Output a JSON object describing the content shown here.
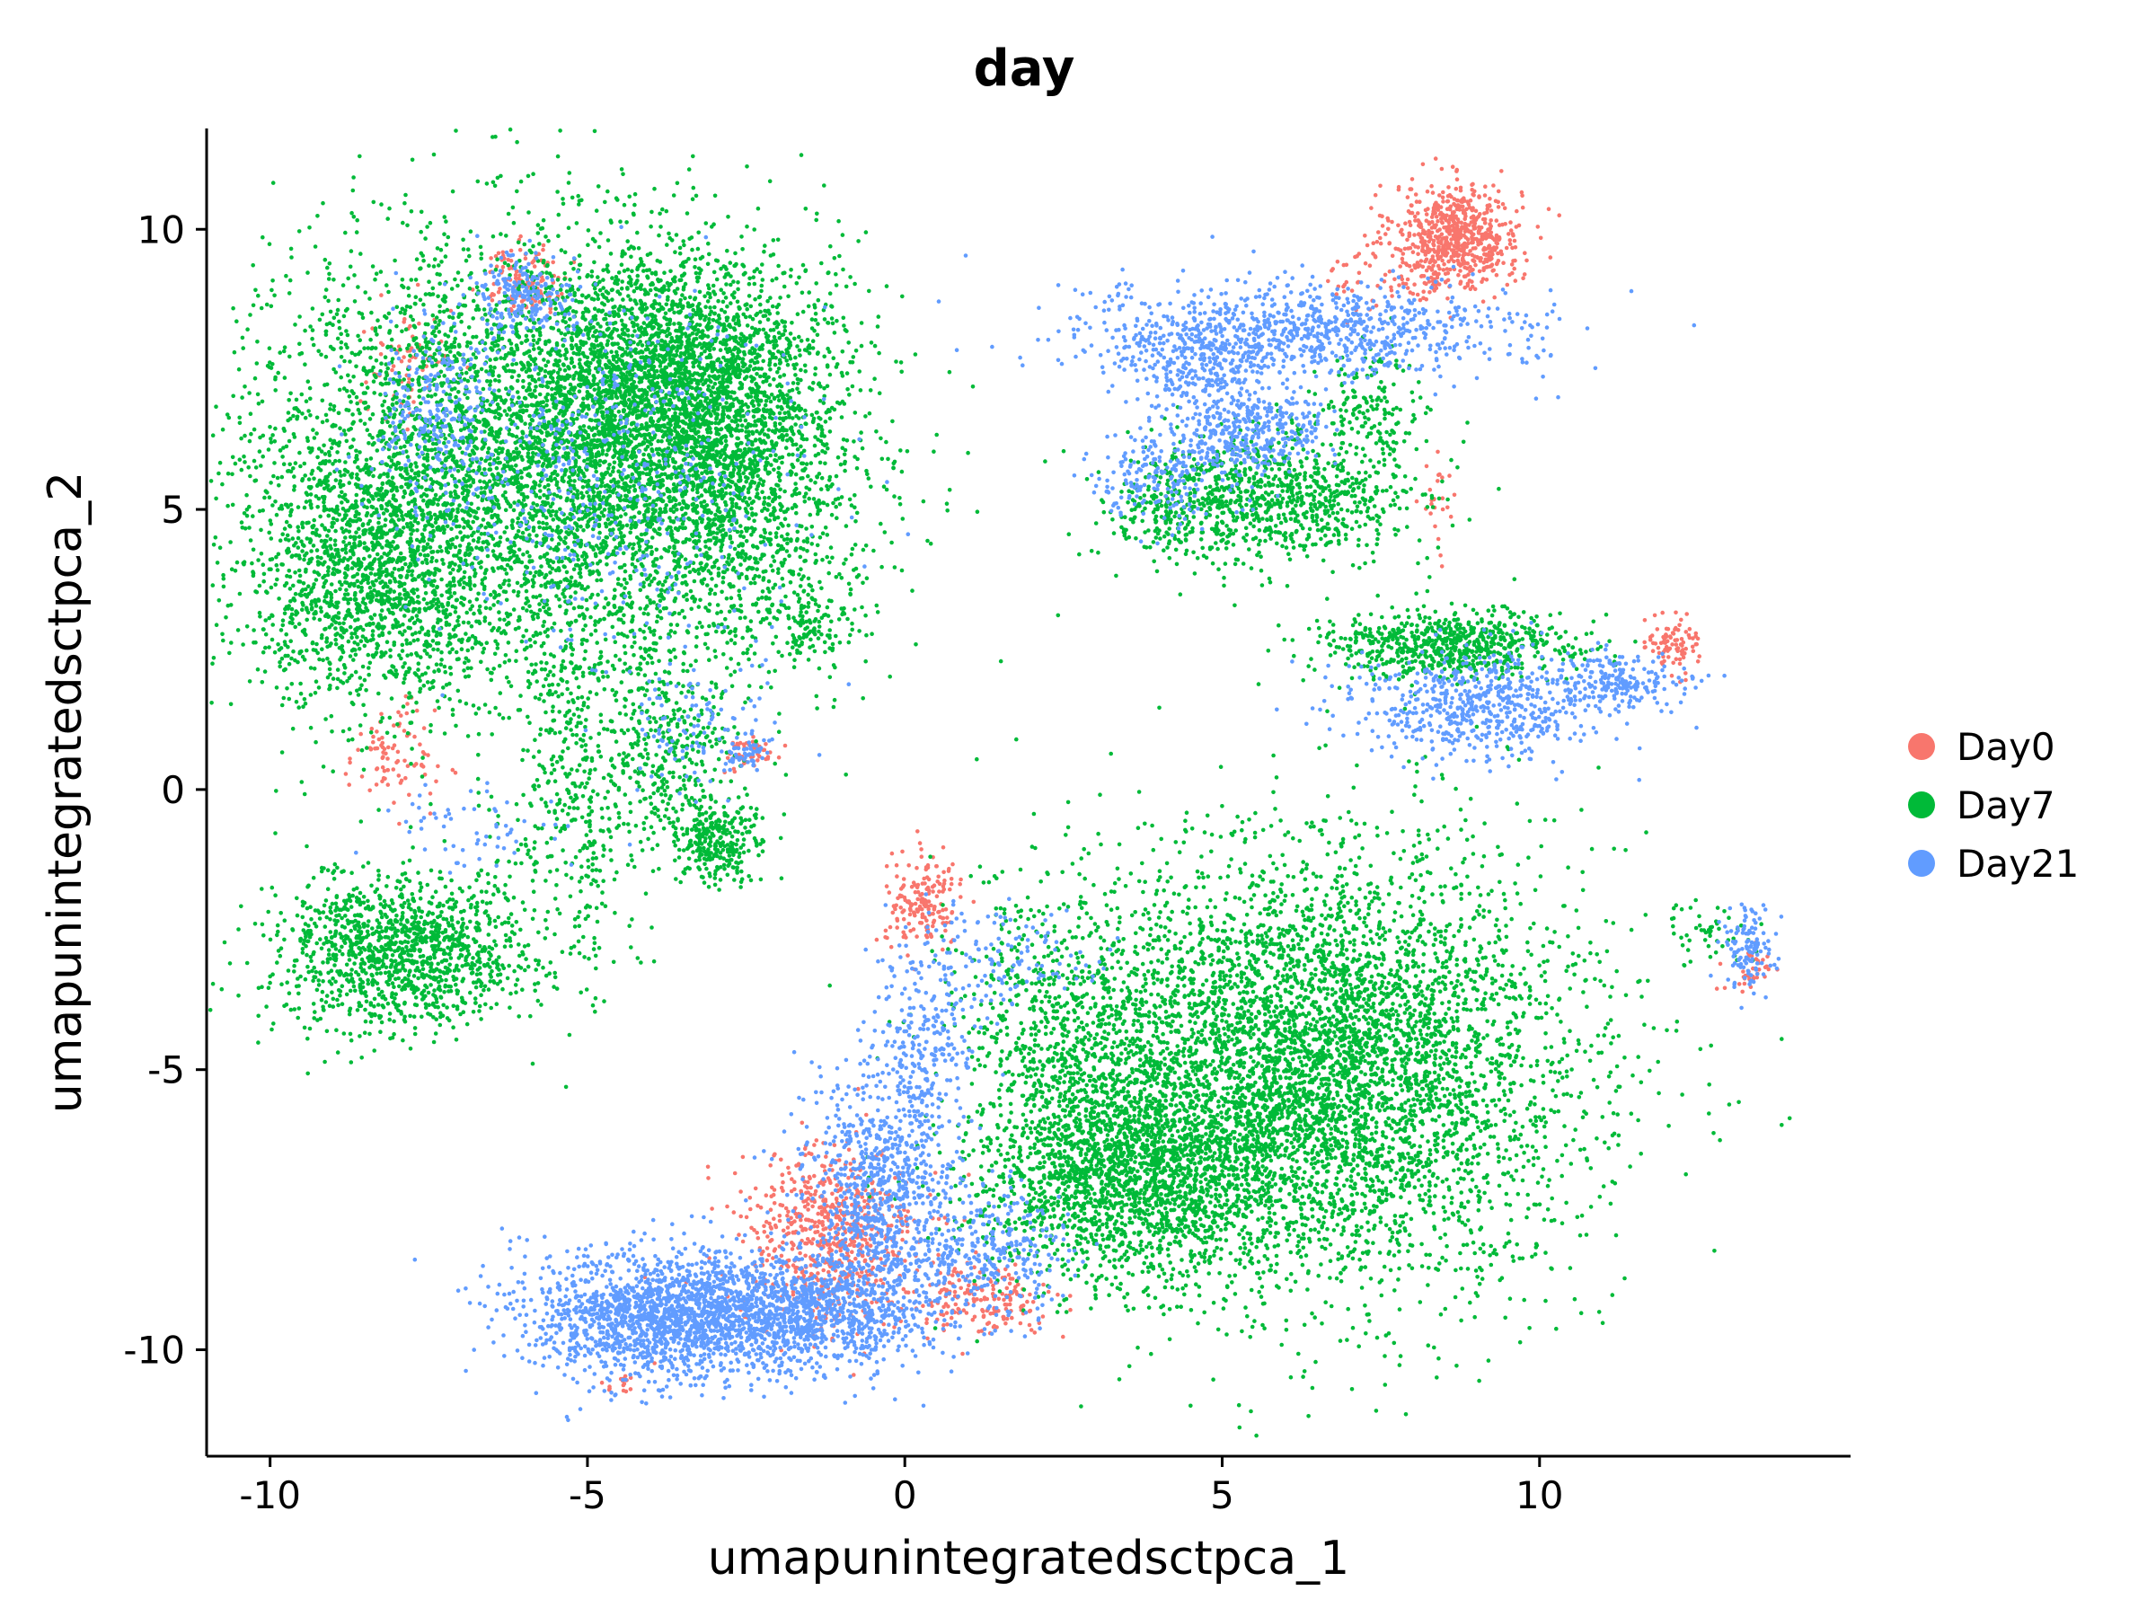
{
  "chart_data": {
    "type": "scatter",
    "title": "day",
    "xlabel": "umapunintegratedsctpca_1",
    "ylabel": "umapunintegratedsctpca_2",
    "xlim": [
      -11.0,
      14.9
    ],
    "ylim": [
      -11.9,
      11.8
    ],
    "xticks": [
      -10,
      -5,
      0,
      5,
      10
    ],
    "xtick_labels": [
      "-10",
      "-5",
      "0",
      "5",
      "10"
    ],
    "yticks": [
      -10,
      -5,
      0,
      5,
      10
    ],
    "ytick_labels": [
      "-10",
      "-5",
      "0",
      "5",
      "10"
    ],
    "legend_position": "right",
    "grid": false,
    "series": [
      {
        "name": "Day0",
        "color": "#F8766D",
        "clusters": [
          {
            "cx": 8.7,
            "cy": 9.9,
            "sx": 0.5,
            "sy": 0.45,
            "n": 650
          },
          {
            "cx": 7.9,
            "cy": 9.2,
            "sx": 0.6,
            "sy": 0.35,
            "n": 90
          },
          {
            "cx": -6.0,
            "cy": 9.1,
            "sx": 0.35,
            "sy": 0.3,
            "n": 120
          },
          {
            "cx": -7.8,
            "cy": 7.6,
            "sx": 0.35,
            "sy": 0.5,
            "n": 70
          },
          {
            "cx": -8.1,
            "cy": 0.6,
            "sx": 0.35,
            "sy": 0.45,
            "n": 90
          },
          {
            "cx": -2.4,
            "cy": 0.65,
            "sx": 0.2,
            "sy": 0.15,
            "n": 50
          },
          {
            "cx": 12.1,
            "cy": 2.6,
            "sx": 0.2,
            "sy": 0.25,
            "n": 90
          },
          {
            "cx": 0.3,
            "cy": -2.0,
            "sx": 0.3,
            "sy": 0.4,
            "n": 180
          },
          {
            "cx": -1.2,
            "cy": -8.0,
            "sx": 0.7,
            "sy": 0.8,
            "n": 650
          },
          {
            "cx": 1.2,
            "cy": -9.1,
            "sx": 0.6,
            "sy": 0.3,
            "n": 180
          },
          {
            "cx": 13.3,
            "cy": -3.3,
            "sx": 0.2,
            "sy": 0.2,
            "n": 40
          },
          {
            "cx": -4.4,
            "cy": -10.6,
            "sx": 0.15,
            "sy": 0.1,
            "n": 15
          },
          {
            "cx": 8.4,
            "cy": 5.2,
            "sx": 0.15,
            "sy": 0.6,
            "n": 25
          }
        ]
      },
      {
        "name": "Day7",
        "color": "#00BA38",
        "clusters": [
          {
            "cx": -5.8,
            "cy": 5.8,
            "sx": 2.2,
            "sy": 2.0,
            "n": 5200
          },
          {
            "cx": -3.8,
            "cy": 7.2,
            "sx": 1.2,
            "sy": 1.2,
            "n": 2200
          },
          {
            "cx": -2.6,
            "cy": 5.5,
            "sx": 0.9,
            "sy": 1.6,
            "n": 1000
          },
          {
            "cx": -8.5,
            "cy": 3.8,
            "sx": 1.0,
            "sy": 1.2,
            "n": 1200
          },
          {
            "cx": -3.0,
            "cy": -0.9,
            "sx": 0.35,
            "sy": 0.35,
            "n": 300
          },
          {
            "cx": -3.7,
            "cy": 0.6,
            "sx": 0.5,
            "sy": 0.8,
            "n": 300
          },
          {
            "cx": -5.2,
            "cy": -0.3,
            "sx": 0.5,
            "sy": 1.6,
            "n": 400
          },
          {
            "cx": -8.0,
            "cy": -2.9,
            "sx": 1.0,
            "sy": 0.7,
            "n": 1300
          },
          {
            "cx": -1.5,
            "cy": 3.0,
            "sx": 0.3,
            "sy": 0.35,
            "n": 100
          },
          {
            "cx": 6.0,
            "cy": 5.2,
            "sx": 1.0,
            "sy": 0.6,
            "n": 800
          },
          {
            "cx": 4.3,
            "cy": 5.0,
            "sx": 0.6,
            "sy": 0.5,
            "n": 250
          },
          {
            "cx": 7.3,
            "cy": 6.8,
            "sx": 0.4,
            "sy": 0.5,
            "n": 150
          },
          {
            "cx": 8.6,
            "cy": 2.6,
            "sx": 1.0,
            "sy": 0.3,
            "n": 700
          },
          {
            "cx": 6.5,
            "cy": -5.0,
            "sx": 2.0,
            "sy": 1.9,
            "n": 5500
          },
          {
            "cx": 3.5,
            "cy": -6.8,
            "sx": 1.2,
            "sy": 1.0,
            "n": 2000
          },
          {
            "cx": 2.5,
            "cy": -4.0,
            "sx": 0.9,
            "sy": 1.2,
            "n": 500
          },
          {
            "cx": 12.7,
            "cy": -2.6,
            "sx": 0.35,
            "sy": 0.3,
            "n": 50
          }
        ]
      },
      {
        "name": "Day21",
        "color": "#619CFF",
        "clusters": [
          {
            "cx": -6.0,
            "cy": 8.8,
            "sx": 0.4,
            "sy": 0.35,
            "n": 200
          },
          {
            "cx": -7.4,
            "cy": 6.8,
            "sx": 0.5,
            "sy": 0.8,
            "n": 250
          },
          {
            "cx": -4.8,
            "cy": 5.6,
            "sx": 1.5,
            "sy": 1.6,
            "n": 500
          },
          {
            "cx": -3.3,
            "cy": 1.2,
            "sx": 0.6,
            "sy": 0.6,
            "n": 100
          },
          {
            "cx": -2.5,
            "cy": 0.65,
            "sx": 0.2,
            "sy": 0.15,
            "n": 50
          },
          {
            "cx": -6.8,
            "cy": -0.7,
            "sx": 0.7,
            "sy": 0.4,
            "n": 60
          },
          {
            "cx": 6.3,
            "cy": 8.2,
            "sx": 1.8,
            "sy": 0.45,
            "n": 900
          },
          {
            "cx": 4.7,
            "cy": 7.6,
            "sx": 0.7,
            "sy": 0.4,
            "n": 250
          },
          {
            "cx": 5.4,
            "cy": 6.4,
            "sx": 0.6,
            "sy": 0.35,
            "n": 350
          },
          {
            "cx": 4.1,
            "cy": 5.6,
            "sx": 0.6,
            "sy": 0.4,
            "n": 200
          },
          {
            "cx": 9.0,
            "cy": 1.5,
            "sx": 1.0,
            "sy": 0.5,
            "n": 600
          },
          {
            "cx": 11.2,
            "cy": 1.9,
            "sx": 0.6,
            "sy": 0.25,
            "n": 200
          },
          {
            "cx": 13.3,
            "cy": -2.9,
            "sx": 0.2,
            "sy": 0.4,
            "n": 120
          },
          {
            "cx": -3.8,
            "cy": -9.4,
            "sx": 1.1,
            "sy": 0.55,
            "n": 1700
          },
          {
            "cx": -1.5,
            "cy": -9.3,
            "sx": 1.0,
            "sy": 0.5,
            "n": 1000
          },
          {
            "cx": -0.4,
            "cy": -7.2,
            "sx": 0.6,
            "sy": 1.1,
            "n": 800
          },
          {
            "cx": 0.3,
            "cy": -4.8,
            "sx": 0.4,
            "sy": 0.9,
            "n": 250
          },
          {
            "cx": 1.4,
            "cy": -8.3,
            "sx": 0.6,
            "sy": 0.6,
            "n": 300
          },
          {
            "cx": 1.4,
            "cy": -3.0,
            "sx": 0.7,
            "sy": 0.5,
            "n": 150
          }
        ]
      }
    ]
  }
}
